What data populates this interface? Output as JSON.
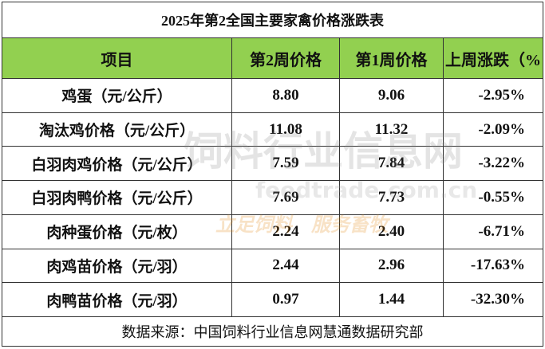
{
  "title": "2025年第2全国主要家禽价格涨跌表",
  "table": {
    "header": [
      "项目",
      "第2周价格",
      "第1周价格",
      "上周涨跌（%"
    ],
    "rows": [
      [
        "鸡蛋（元/公斤）",
        "8.80",
        "9.06",
        "-2.95%"
      ],
      [
        "淘汰鸡价格（元/公斤）",
        "11.08",
        "11.32",
        "-2.09%"
      ],
      [
        "白羽肉鸡价格（元/公斤）",
        "7.59",
        "7.84",
        "-3.22%"
      ],
      [
        "白羽肉鸭价格（元/公斤）",
        "7.69",
        "7.73",
        "-0.55%"
      ],
      [
        "肉种蛋价格（元/枚）",
        "2.24",
        "2.40",
        "-6.71%"
      ],
      [
        "肉鸡苗价格（元/羽）",
        "2.44",
        "2.96",
        "-17.63%"
      ],
      [
        "肉鸭苗价格（元/羽）",
        "0.97",
        "1.44",
        "-32.30%"
      ]
    ]
  },
  "footer": "数据来源：中国饲料行业信息网慧通数据研究部",
  "watermark": {
    "name": "饲料行业信息网",
    "url": "feedtrade.com.cn",
    "slogan": "立足饲料　服务畜牧"
  }
}
